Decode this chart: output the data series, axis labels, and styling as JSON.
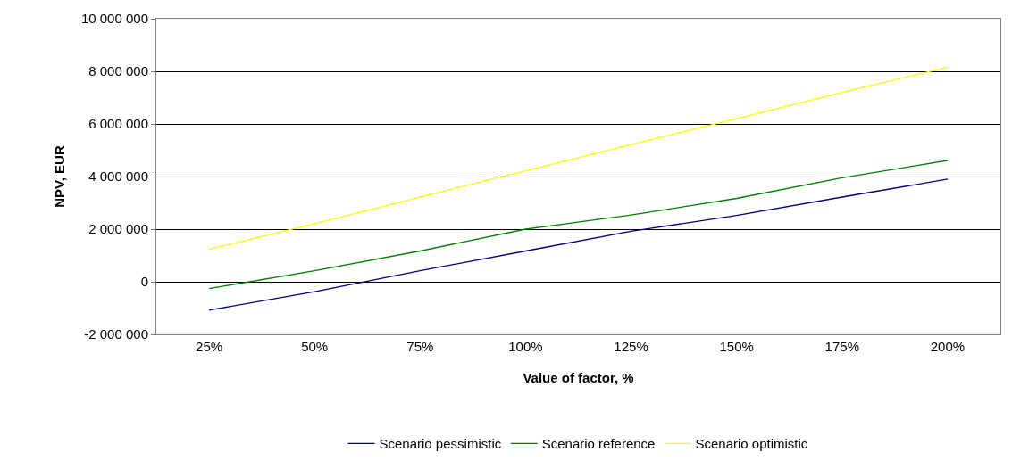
{
  "chart_data": {
    "type": "line",
    "xlabel": "Value of factor, %",
    "ylabel": "NPV, EUR",
    "categories": [
      "25%",
      "50%",
      "75%",
      "100%",
      "125%",
      "150%",
      "175%",
      "200%"
    ],
    "series": [
      {
        "name": "Scenario pessimistic",
        "color": "#000080",
        "values": [
          -1080000,
          -380000,
          420000,
          1170000,
          1920000,
          2520000,
          3220000,
          3900000
        ]
      },
      {
        "name": "Scenario reference",
        "color": "#008000",
        "values": [
          -260000,
          420000,
          1170000,
          2000000,
          2540000,
          3170000,
          3950000,
          4610000
        ]
      },
      {
        "name": "Scenario optimistic",
        "color": "#ffff00",
        "values": [
          1230000,
          2210000,
          3220000,
          4220000,
          5220000,
          6200000,
          7200000,
          8160000
        ]
      }
    ],
    "ylim": [
      -2000000,
      10000000
    ],
    "yticks": [
      {
        "value": -2000000,
        "label": "-2 000 000"
      },
      0,
      {
        "value": 2000000,
        "label": "2 000 000"
      },
      {
        "value": 4000000,
        "label": "4 000 000"
      },
      {
        "value": 6000000,
        "label": "6 000 000"
      },
      {
        "value": 8000000,
        "label": "8 000 000"
      },
      {
        "value": 10000000,
        "label": "10 000 000"
      }
    ],
    "grid": "y",
    "legend": "bottom",
    "marker": "none",
    "line_style": "solid"
  }
}
